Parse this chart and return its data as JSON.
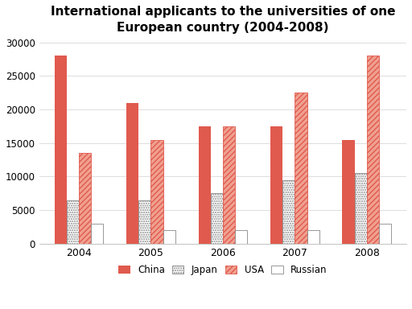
{
  "title": "International applicants to the universities of one\nEuropean country (2004-2008)",
  "years": [
    "2004",
    "2005",
    "2006",
    "2007",
    "2008"
  ],
  "china": [
    28000,
    21000,
    17500,
    17500,
    15500
  ],
  "japan": [
    6500,
    6500,
    7500,
    9500,
    10500
  ],
  "usa": [
    13500,
    15500,
    17500,
    22500,
    28000
  ],
  "russian": [
    3000,
    2000,
    2000,
    2000,
    3000
  ],
  "china_color": "#e05a4e",
  "usa_hatch_color": "#f0a090",
  "usa_edge_color": "#e05a4e",
  "ylim": [
    0,
    30000
  ],
  "yticks": [
    0,
    5000,
    10000,
    15000,
    20000,
    25000,
    30000
  ],
  "legend_labels": [
    "China",
    "Japan",
    "USA",
    "Russian"
  ],
  "title_fontsize": 11,
  "bar_width": 0.17,
  "background_color": "#ffffff",
  "grid_color": "#dddddd"
}
